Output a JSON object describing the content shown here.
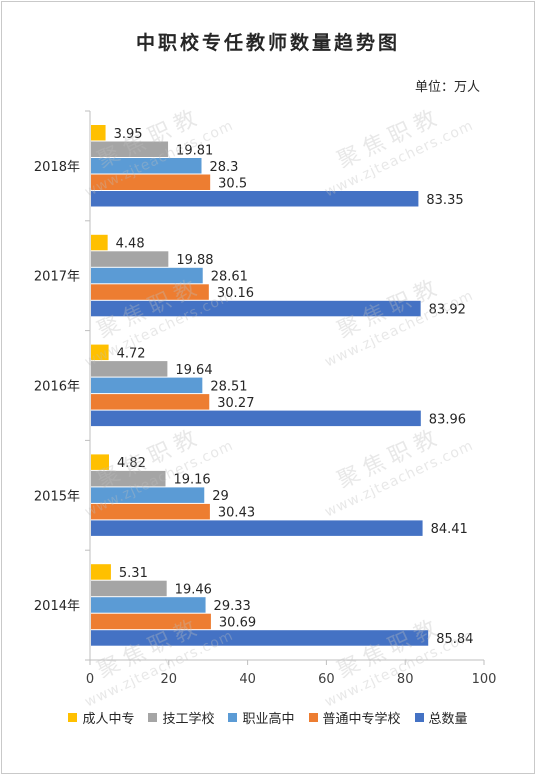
{
  "chart_data": {
    "type": "bar",
    "orientation": "horizontal",
    "title": "中职校专任教师数量趋势图",
    "unit_label": "单位：万人",
    "categories": [
      "2018年",
      "2017年",
      "2016年",
      "2015年",
      "2014年"
    ],
    "series": [
      {
        "name": "成人中专",
        "color": "#ffc000",
        "values": [
          3.95,
          4.48,
          4.72,
          4.82,
          5.31
        ]
      },
      {
        "name": "技工学校",
        "color": "#a5a5a5",
        "values": [
          19.81,
          19.88,
          19.64,
          19.16,
          19.46
        ]
      },
      {
        "name": "职业高中",
        "color": "#5b9bd5",
        "values": [
          28.3,
          28.61,
          28.51,
          29,
          29.33
        ]
      },
      {
        "name": "普通中专学校",
        "color": "#ed7d31",
        "values": [
          30.5,
          30.16,
          30.27,
          30.43,
          30.69
        ]
      },
      {
        "name": "总数量",
        "color": "#4472c4",
        "values": [
          83.35,
          83.92,
          83.96,
          84.41,
          85.84
        ]
      }
    ],
    "xlim": [
      0,
      100
    ],
    "xticks": [
      "0",
      "20",
      "40",
      "60",
      "80",
      "100"
    ],
    "grid": false,
    "legend_position": "bottom"
  },
  "watermark": {
    "title": "聚焦职教",
    "url": "www.zjteachers.com"
  }
}
